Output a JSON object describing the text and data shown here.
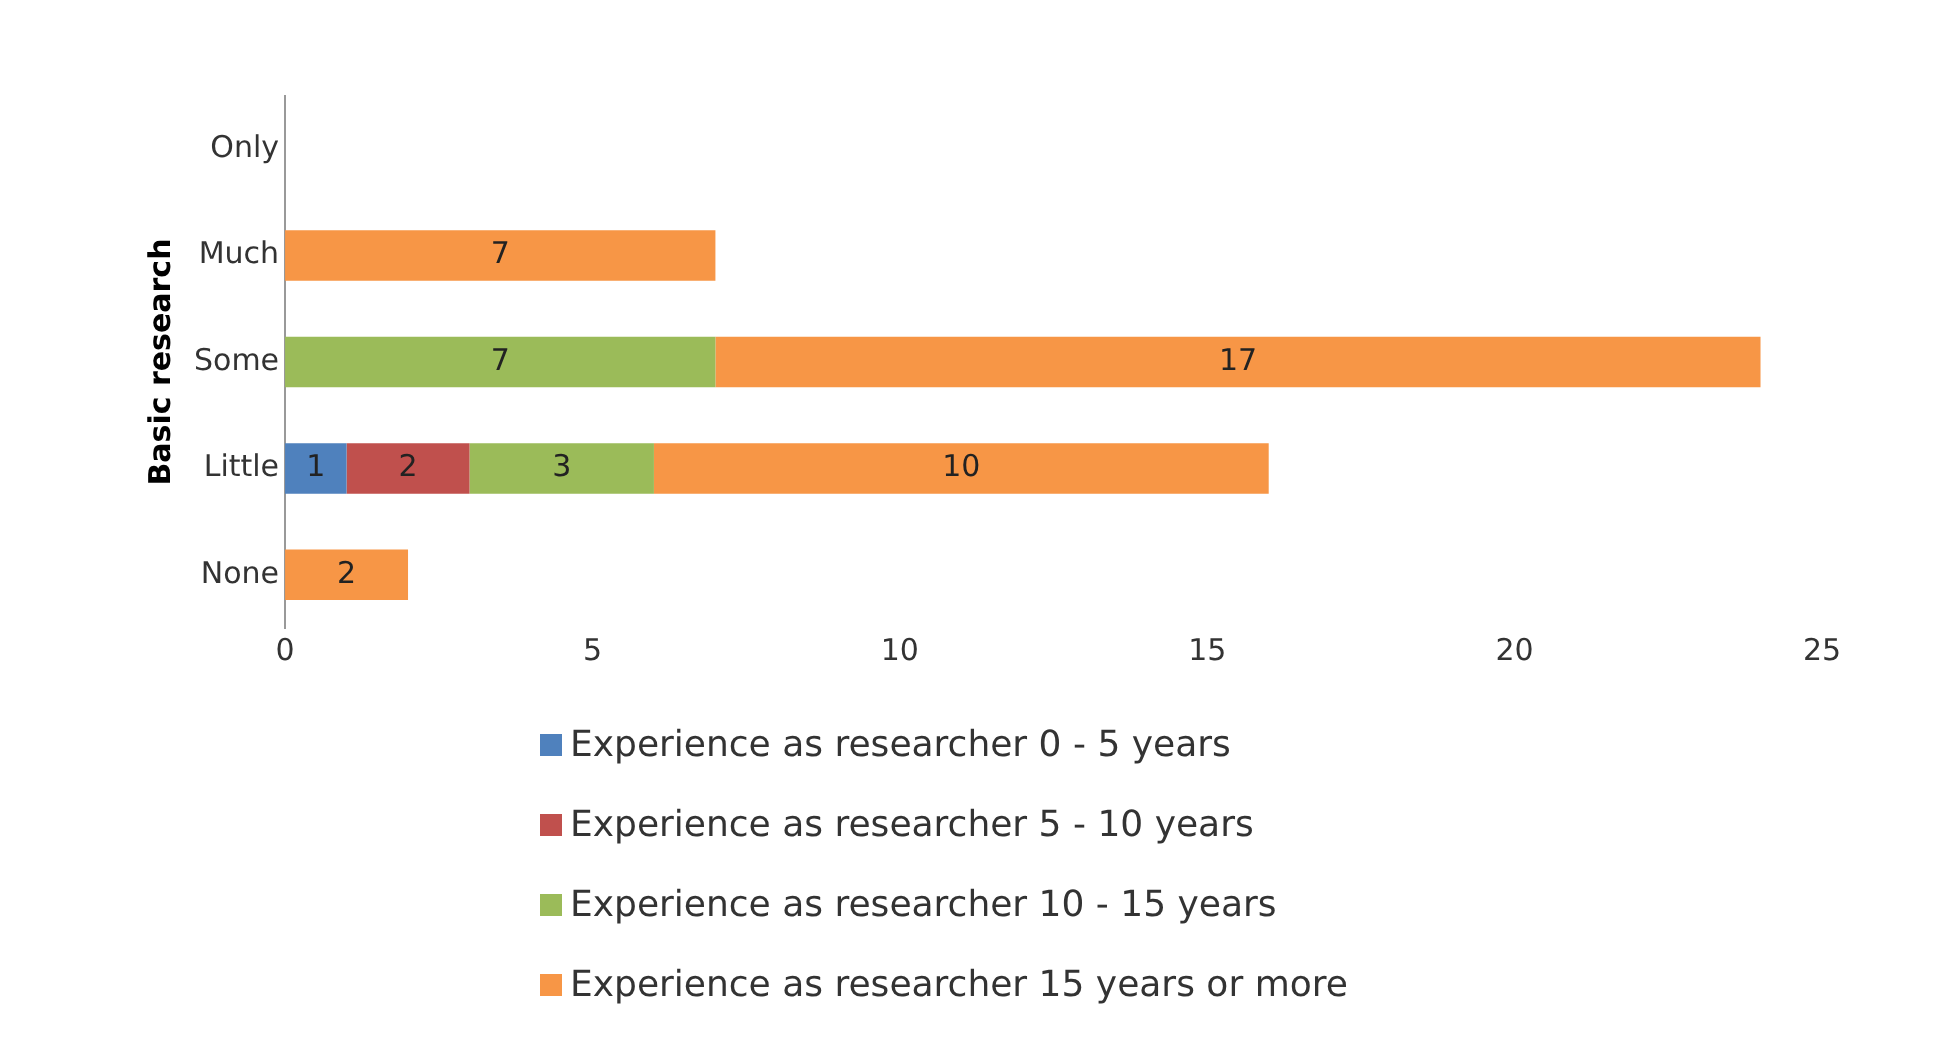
{
  "chart_data": {
    "type": "bar",
    "orientation": "horizontal",
    "stacked": true,
    "ylabel": "Basic research",
    "categories": [
      "Only",
      "Much",
      "Some",
      "Little",
      "None"
    ],
    "series": [
      {
        "name": "Experience as researcher 0 - 5 years",
        "color": "#4f81bd",
        "values": [
          null,
          null,
          null,
          1,
          null
        ]
      },
      {
        "name": "Experience as researcher 5 - 10 years",
        "color": "#c0504d",
        "values": [
          null,
          null,
          null,
          2,
          null
        ]
      },
      {
        "name": "Experience as researcher 10 - 15 years",
        "color": "#9bbb59",
        "values": [
          null,
          null,
          7,
          3,
          null
        ]
      },
      {
        "name": "Experience as researcher 15 years or more",
        "color": "#f79646",
        "values": [
          null,
          7,
          17,
          10,
          2
        ]
      }
    ],
    "xlim": [
      0,
      25
    ],
    "xticks": [
      0,
      5,
      10,
      15,
      20,
      25
    ],
    "grid": false,
    "legend": "bottom",
    "data_labels": true
  }
}
